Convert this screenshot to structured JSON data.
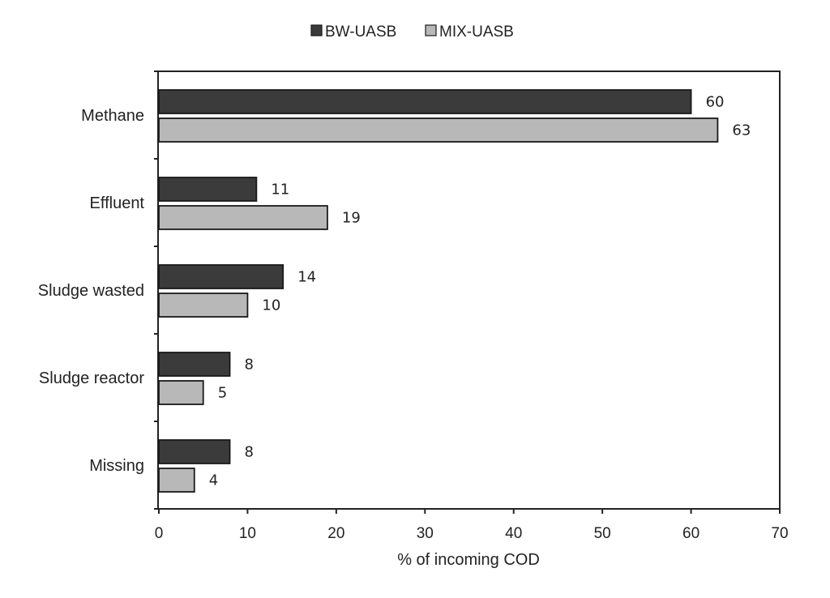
{
  "chart_data": {
    "type": "bar",
    "orientation": "horizontal",
    "categories": [
      "Methane",
      "Effluent",
      "Sludge wasted",
      "Sludge reactor",
      "Missing"
    ],
    "series": [
      {
        "name": "BW-UASB",
        "values": [
          60,
          11,
          14,
          8,
          8
        ],
        "color": "#3b3b3b"
      },
      {
        "name": "MIX-UASB",
        "values": [
          63,
          19,
          10,
          5,
          4
        ],
        "color": "#b8b8b8"
      }
    ],
    "xlabel": "% of incoming COD",
    "ylabel": "",
    "xlim": [
      0,
      70
    ],
    "xticks": [
      0,
      10,
      20,
      30,
      40,
      50,
      60,
      70
    ],
    "grid": false,
    "legend": "top-center",
    "data_labels": true
  }
}
